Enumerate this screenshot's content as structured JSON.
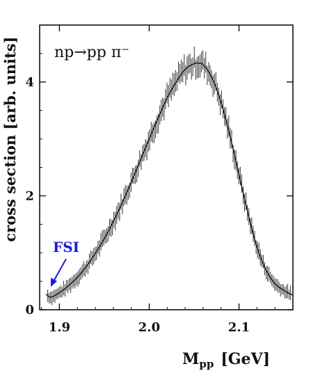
{
  "chart_data": {
    "type": "line",
    "annotation_reaction": "np→pp π⁻",
    "annotation_fsi": "FSI",
    "ylabel": "cross section [arb. units]",
    "xlabel": "M",
    "xlabel_sub": "pp",
    "xlabel_unit": "[GeV]",
    "xlim": [
      1.878,
      2.16
    ],
    "ylim": [
      0,
      5.0
    ],
    "x_ticks": [
      1.9,
      2.0,
      2.1
    ],
    "x_tick_labels": [
      "1.9",
      "2.0",
      "2.1"
    ],
    "y_ticks": [
      0,
      2,
      4
    ],
    "y_tick_labels": [
      "0",
      "2",
      "4"
    ],
    "grid": false,
    "colors": {
      "axes": "#111111",
      "data": "#222222",
      "fsi": "#1a1adc"
    },
    "series": [
      {
        "x": [
          1.885,
          1.89,
          1.9,
          1.91,
          1.92,
          1.93,
          1.94,
          1.95,
          1.96,
          1.97,
          1.98,
          1.99,
          2.0,
          2.01,
          2.02,
          2.03,
          2.04,
          2.05,
          2.055,
          2.06,
          2.07,
          2.08,
          2.09,
          2.1,
          2.11,
          2.12,
          2.13,
          2.14,
          2.15,
          2.16
        ],
        "values": [
          0.27,
          0.22,
          0.3,
          0.42,
          0.57,
          0.76,
          0.99,
          1.25,
          1.55,
          1.88,
          2.24,
          2.62,
          3.0,
          3.37,
          3.72,
          4.0,
          4.22,
          4.32,
          4.33,
          4.3,
          4.07,
          3.64,
          3.05,
          2.37,
          1.69,
          1.1,
          0.7,
          0.46,
          0.34,
          0.26
        ]
      }
    ]
  }
}
